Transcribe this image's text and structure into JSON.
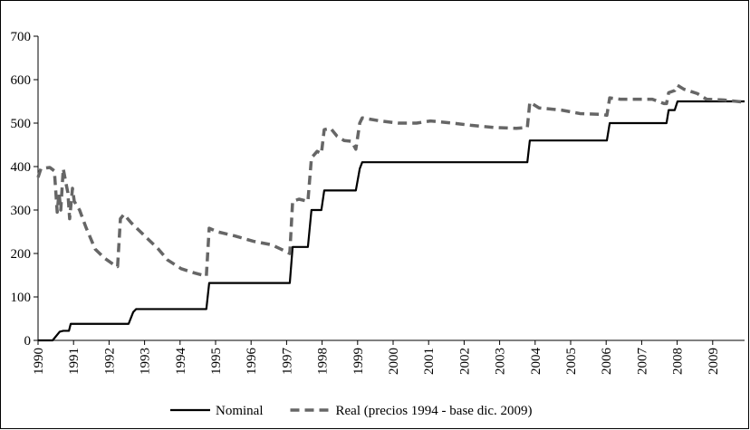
{
  "chart_data": {
    "type": "line",
    "legend": "bottom",
    "xlim": [
      1990,
      2010
    ],
    "xticks": [
      1990,
      1991,
      1992,
      1993,
      1994,
      1995,
      1996,
      1997,
      1998,
      1999,
      2000,
      2001,
      2002,
      2003,
      2004,
      2005,
      2006,
      2007,
      2008,
      2009
    ],
    "ylim": [
      0,
      700
    ],
    "yticks": [
      0,
      100,
      200,
      300,
      400,
      500,
      600,
      700
    ],
    "grid": false,
    "series": [
      {
        "name": "Nominal",
        "color": "#000000",
        "dash": false,
        "x": [
          1990.0,
          1990.41,
          1990.61,
          1990.71,
          1990.87,
          1990.92,
          1992.55,
          1992.68,
          1992.76,
          1994.74,
          1994.82,
          1997.09,
          1997.17,
          1997.6,
          1997.7,
          1997.98,
          1998.06,
          1998.95,
          1999.06,
          1999.13,
          2003.78,
          2003.85,
          2006.02,
          2006.1,
          2007.7,
          2007.76,
          2007.93,
          2008.01,
          2009.9
        ],
        "values": [
          0,
          0,
          20,
          22,
          22,
          38,
          38,
          65,
          72,
          72,
          132,
          132,
          215,
          215,
          300,
          300,
          345,
          345,
          395,
          410,
          410,
          460,
          460,
          500,
          500,
          530,
          530,
          550,
          550
        ]
      },
      {
        "name": "Real (precios 1994 - base dic. 2009)",
        "color": "#666666",
        "dash": true,
        "x": [
          1990.0,
          1990.08,
          1990.33,
          1990.46,
          1990.54,
          1990.59,
          1990.64,
          1990.71,
          1990.79,
          1990.84,
          1990.89,
          1990.97,
          1991.02,
          1991.17,
          1991.35,
          1991.61,
          1991.86,
          1992.12,
          1992.24,
          1992.32,
          1992.42,
          1992.63,
          1993.01,
          1993.39,
          1993.65,
          1994.03,
          1994.41,
          1994.74,
          1994.82,
          1995.05,
          1995.56,
          1996.07,
          1996.58,
          1996.84,
          1997.09,
          1997.17,
          1997.35,
          1997.6,
          1997.7,
          1997.86,
          1997.98,
          1998.06,
          1998.24,
          1998.42,
          1998.62,
          1998.83,
          1998.95,
          1999.06,
          1999.13,
          1999.64,
          2000.15,
          2000.66,
          2001.05,
          2001.68,
          2002.19,
          2002.83,
          2003.47,
          2003.78,
          2003.85,
          2004.11,
          2004.74,
          2005.26,
          2005.89,
          2006.02,
          2006.1,
          2006.4,
          2007.3,
          2007.63,
          2007.7,
          2007.76,
          2007.93,
          2008.01,
          2008.19,
          2008.57,
          2008.83,
          2009.34,
          2009.9
        ],
        "values": [
          375,
          395,
          398,
          390,
          295,
          340,
          300,
          395,
          360,
          340,
          280,
          350,
          320,
          300,
          260,
          210,
          190,
          175,
          170,
          280,
          290,
          270,
          240,
          210,
          185,
          165,
          155,
          148,
          258,
          250,
          240,
          228,
          220,
          210,
          200,
          320,
          325,
          320,
          420,
          435,
          430,
          485,
          488,
          470,
          460,
          458,
          440,
          500,
          512,
          505,
          500,
          500,
          505,
          500,
          495,
          490,
          488,
          490,
          548,
          535,
          530,
          522,
          520,
          518,
          558,
          555,
          555,
          545,
          545,
          570,
          575,
          587,
          578,
          568,
          555,
          553,
          548
        ]
      }
    ]
  }
}
